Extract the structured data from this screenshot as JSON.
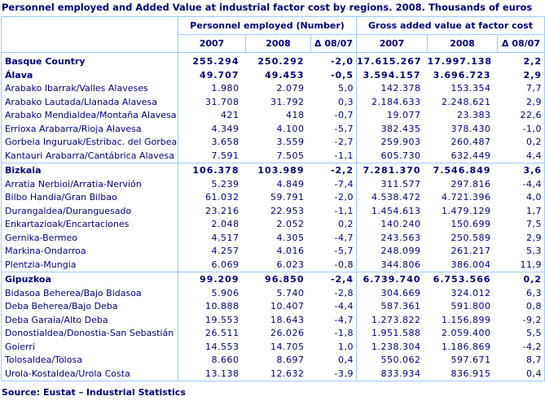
{
  "page": {
    "title": "Personnel employed and Added Value at industrial factor cost by regions. 2008. Thousands of euros",
    "source": "Source: Eustat – Industrial Statistics"
  },
  "colors": {
    "text_navy": "#000080",
    "grid_light_blue": "#99ccff",
    "background": "#ffffff"
  },
  "table": {
    "group_headers": {
      "personnel": "Personnel employed (Number)",
      "gross_added_value": "Gross added value at factor cost"
    },
    "sub_headers": [
      "2007",
      "2008",
      "Δ 08/07",
      "2007",
      "2008",
      "Δ 08/07"
    ],
    "rows": [
      {
        "region": "Basque Country",
        "bold": true,
        "section_start": false,
        "values": [
          "255.294",
          "250.292",
          "-2,0",
          "17.615.267",
          "17.997.138",
          "2,2"
        ]
      },
      {
        "region": "Álava",
        "bold": true,
        "section_start": false,
        "values": [
          "49.707",
          "49.453",
          "-0,5",
          "3.594.157",
          "3.696.723",
          "2,9"
        ]
      },
      {
        "region": "Arabako Ibarrak/Valles Alaveses",
        "bold": false,
        "section_start": false,
        "values": [
          "1.980",
          "2.079",
          "5,0",
          "142.378",
          "153.354",
          "7,7"
        ]
      },
      {
        "region": "Arabako Lautada/Llanada Alavesa",
        "bold": false,
        "section_start": false,
        "values": [
          "31.708",
          "31.792",
          "0,3",
          "2.184.633",
          "2.248.621",
          "2,9"
        ]
      },
      {
        "region": "Arabako Mendialdea/Montaña Alavesa",
        "bold": false,
        "section_start": false,
        "values": [
          "421",
          "418",
          "-0,7",
          "19.077",
          "23.383",
          "22,6"
        ]
      },
      {
        "region": "Errioxa Arabarra/Rioja Alavesa",
        "bold": false,
        "section_start": false,
        "values": [
          "4.349",
          "4.100",
          "-5,7",
          "382.435",
          "378.430",
          "-1,0"
        ]
      },
      {
        "region": "Gorbeia Inguruak/Estribac. del Gorbea",
        "bold": false,
        "section_start": false,
        "values": [
          "3.658",
          "3.559",
          "-2,7",
          "259.903",
          "260.487",
          "0,2"
        ]
      },
      {
        "region": "Kantauri Arabarra/Cantábrica Alavesa",
        "bold": false,
        "section_start": false,
        "values": [
          "7.591",
          "7.505",
          "-1,1",
          "605.730",
          "632.449",
          "4,4"
        ]
      },
      {
        "region": "Bizkaia",
        "bold": true,
        "section_start": true,
        "values": [
          "106.378",
          "103.989",
          "-2,2",
          "7.281.370",
          "7.546.849",
          "3,6"
        ]
      },
      {
        "region": "Arratia Nerbioi/Arratia-Nervión",
        "bold": false,
        "section_start": false,
        "values": [
          "5.239",
          "4.849",
          "-7,4",
          "311.577",
          "297.816",
          "-4,4"
        ]
      },
      {
        "region": "Bilbo Handia/Gran Bilbao",
        "bold": false,
        "section_start": false,
        "values": [
          "61.032",
          "59.791",
          "-2,0",
          "4.538.472",
          "4.721.396",
          "4,0"
        ]
      },
      {
        "region": "Durangaldea/Duranguesado",
        "bold": false,
        "section_start": false,
        "values": [
          "23.216",
          "22.953",
          "-1,1",
          "1.454.613",
          "1.479.129",
          "1,7"
        ]
      },
      {
        "region": "Enkartazioak/Encartaciones",
        "bold": false,
        "section_start": false,
        "values": [
          "2.048",
          "2.052",
          "0,2",
          "140.240",
          "150.699",
          "7,5"
        ]
      },
      {
        "region": "Gernika-Bermeo",
        "bold": false,
        "section_start": false,
        "values": [
          "4.517",
          "4.305",
          "-4,7",
          "243.563",
          "250.589",
          "2,9"
        ]
      },
      {
        "region": "Markina-Ondarroa",
        "bold": false,
        "section_start": false,
        "values": [
          "4.257",
          "4.016",
          "-5,7",
          "248.099",
          "261.217",
          "5,3"
        ]
      },
      {
        "region": "Plentzia-Mungia",
        "bold": false,
        "section_start": false,
        "values": [
          "6.069",
          "6.023",
          "-0,8",
          "344.806",
          "386.004",
          "11,9"
        ]
      },
      {
        "region": "Gipuzkoa",
        "bold": true,
        "section_start": true,
        "values": [
          "99.209",
          "96.850",
          "-2,4",
          "6.739.740",
          "6.753.566",
          "0,2"
        ]
      },
      {
        "region": "Bidasoa Beherea/Bajo Bidasoa",
        "bold": false,
        "section_start": false,
        "values": [
          "5.906",
          "5.740",
          "-2,8",
          "304.669",
          "324.012",
          "6,3"
        ]
      },
      {
        "region": "Deba Beherea/Bajo Deba",
        "bold": false,
        "section_start": false,
        "values": [
          "10.888",
          "10.407",
          "-4,4",
          "587.361",
          "591.800",
          "0,8"
        ]
      },
      {
        "region": "Deba Garaia/Alto Deba",
        "bold": false,
        "section_start": false,
        "values": [
          "19.553",
          "18.643",
          "-4,7",
          "1.273.822",
          "1.156.899",
          "-9,2"
        ]
      },
      {
        "region": "Donostialdea/Donostia-San Sebastián",
        "bold": false,
        "section_start": false,
        "values": [
          "26.511",
          "26.026",
          "-1,8",
          "1.951.588",
          "2.059.400",
          "5,5"
        ]
      },
      {
        "region": "Goierri",
        "bold": false,
        "section_start": false,
        "values": [
          "14.553",
          "14.705",
          "1,0",
          "1.238.304",
          "1.186.869",
          "-4,2"
        ]
      },
      {
        "region": "Tolosaldea/Tolosa",
        "bold": false,
        "section_start": false,
        "values": [
          "8.660",
          "8.697",
          "0,4",
          "550.062",
          "597.671",
          "8,7"
        ]
      },
      {
        "region": "Urola-Kostaldea/Urola Costa",
        "bold": false,
        "section_start": false,
        "values": [
          "13.138",
          "12.632",
          "-3,9",
          "833.934",
          "836.915",
          "0,4"
        ]
      }
    ]
  }
}
